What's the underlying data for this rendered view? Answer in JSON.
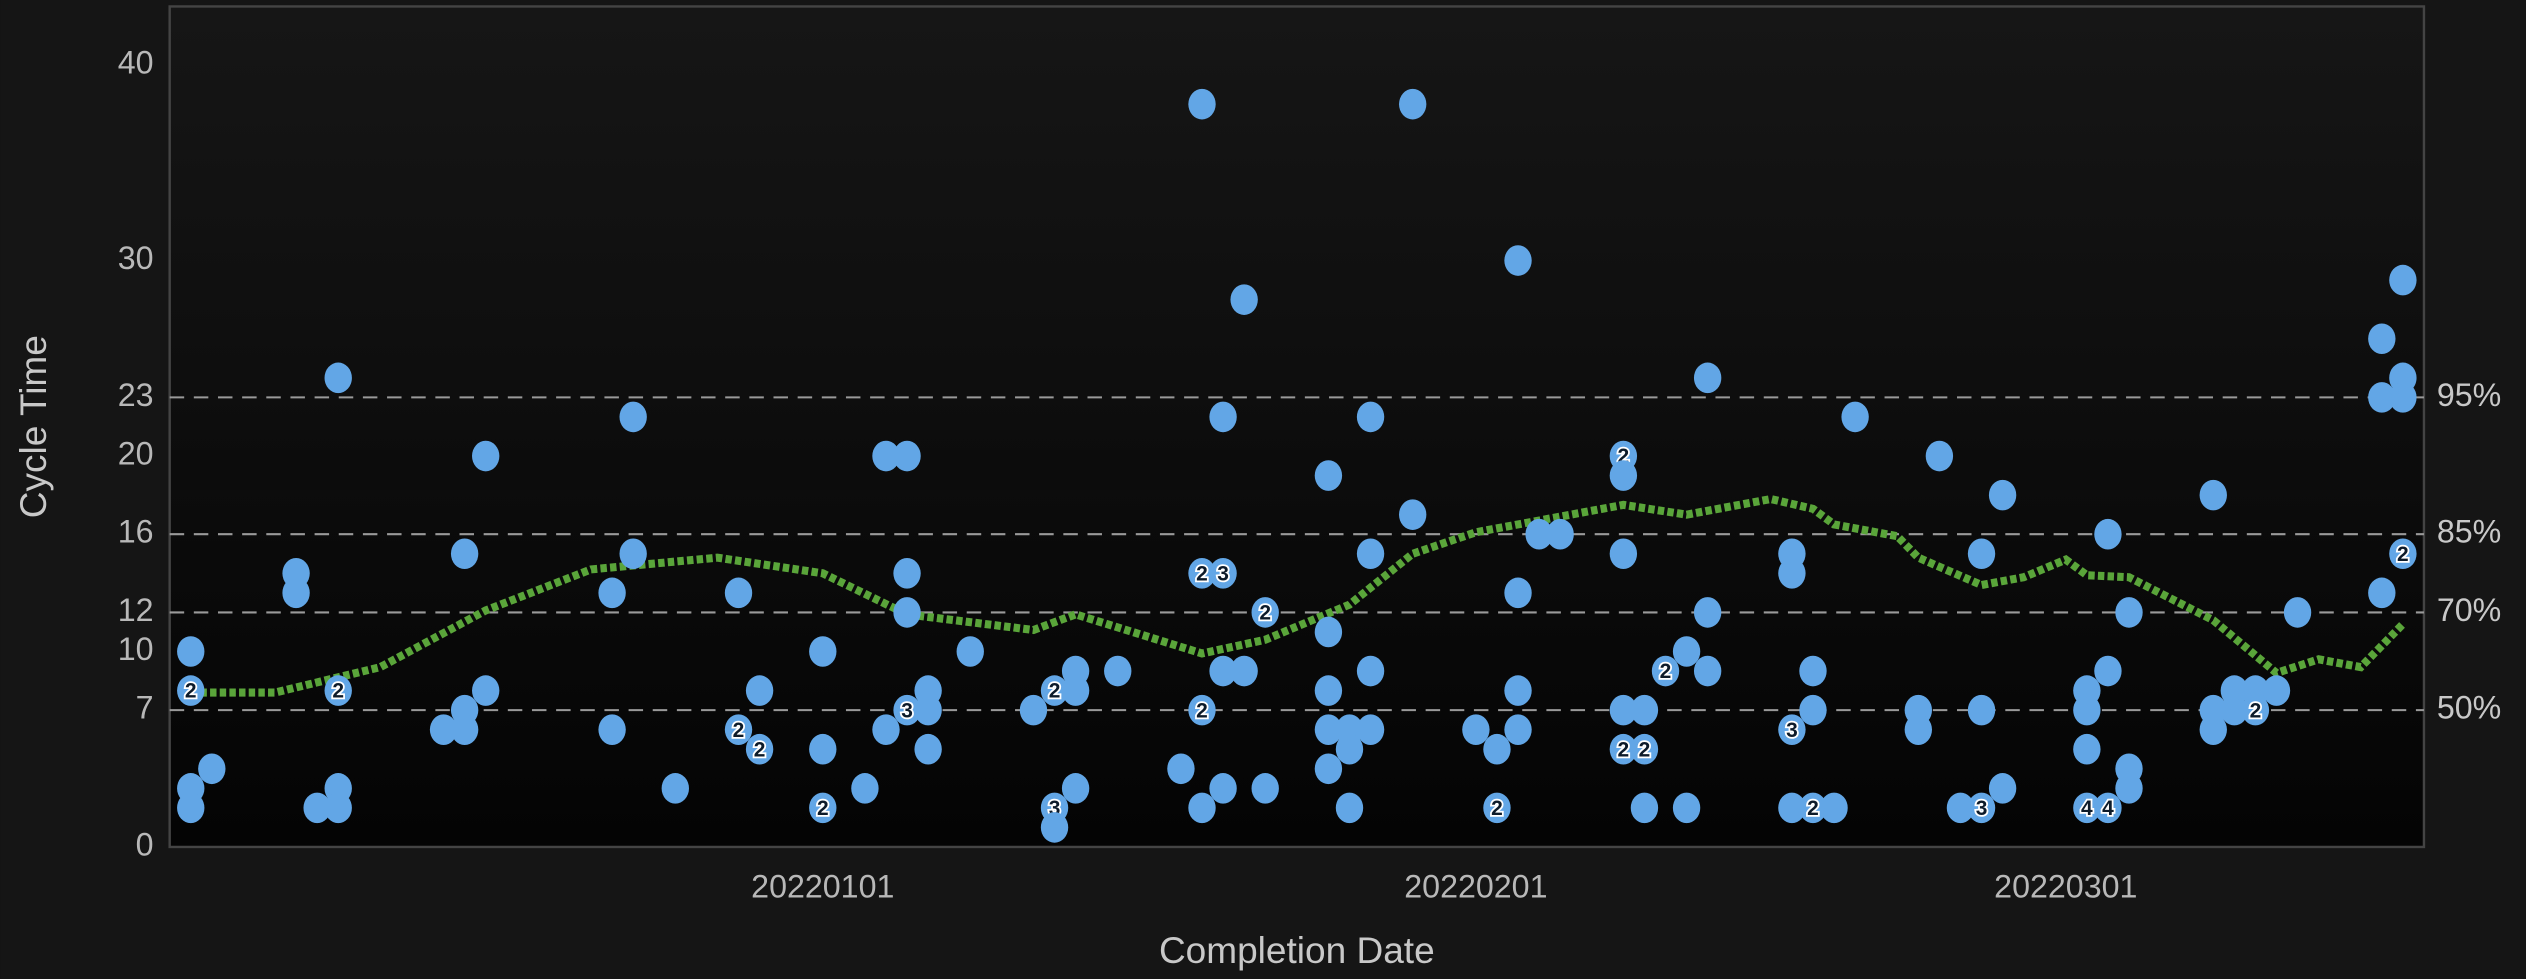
{
  "chart_data": {
    "type": "scatter",
    "ylabel": "Cycle Time",
    "xlabel": "Completion Date",
    "xlim": [
      "20211201",
      "20220318"
    ],
    "xticks": [
      "20220101",
      "20220201",
      "20220301"
    ],
    "ylim": [
      0,
      43
    ],
    "yticks": [
      0,
      7,
      10,
      12,
      16,
      20,
      23,
      30,
      40
    ],
    "grid": true,
    "color": "#62a6e6",
    "percentiles": [
      {
        "value": 23,
        "label": "95%"
      },
      {
        "value": 16,
        "label": "85%"
      },
      {
        "value": 12,
        "label": "70%"
      },
      {
        "value": 7,
        "label": "50%"
      }
    ],
    "trend": {
      "color": "#5aa53a",
      "x": [
        "20211202",
        "20211206",
        "20211211",
        "20211216",
        "20211221",
        "20211227",
        "20220101",
        "20220105",
        "20220111",
        "20220113",
        "20220119",
        "20220122",
        "20220126",
        "20220129",
        "20220201",
        "20220205",
        "20220208",
        "20220211",
        "20220215",
        "20220217",
        "20220218",
        "20220221",
        "20220222",
        "20220225",
        "20220227",
        "20220301",
        "20220302",
        "20220304",
        "20220308",
        "20220311",
        "20220313",
        "20220315",
        "20220317"
      ],
      "values": [
        7.9,
        7.9,
        9.2,
        12.1,
        14.2,
        14.8,
        14.0,
        11.9,
        11.1,
        11.9,
        9.9,
        10.6,
        12.4,
        15.0,
        16.1,
        16.9,
        17.5,
        17.0,
        17.8,
        17.3,
        16.5,
        15.9,
        14.8,
        13.4,
        13.8,
        14.7,
        13.9,
        13.8,
        11.6,
        8.9,
        9.6,
        9.2,
        11.4
      ]
    },
    "points": [
      {
        "date": "20211202",
        "value": 10
      },
      {
        "date": "20211202",
        "value": 8,
        "count": 2
      },
      {
        "date": "20211202",
        "value": 3
      },
      {
        "date": "20211202",
        "value": 2
      },
      {
        "date": "20211203",
        "value": 4
      },
      {
        "date": "20211207",
        "value": 14
      },
      {
        "date": "20211207",
        "value": 13
      },
      {
        "date": "20211208",
        "value": 2
      },
      {
        "date": "20211209",
        "value": 24
      },
      {
        "date": "20211209",
        "value": 8,
        "count": 2
      },
      {
        "date": "20211209",
        "value": 3
      },
      {
        "date": "20211209",
        "value": 2
      },
      {
        "date": "20211214",
        "value": 6
      },
      {
        "date": "20211215",
        "value": 15
      },
      {
        "date": "20211215",
        "value": 7
      },
      {
        "date": "20211215",
        "value": 6
      },
      {
        "date": "20211216",
        "value": 20
      },
      {
        "date": "20211216",
        "value": 8
      },
      {
        "date": "20211222",
        "value": 13
      },
      {
        "date": "20211222",
        "value": 6
      },
      {
        "date": "20211223",
        "value": 22
      },
      {
        "date": "20211223",
        "value": 15
      },
      {
        "date": "20211225",
        "value": 3
      },
      {
        "date": "20211228",
        "value": 13
      },
      {
        "date": "20211228",
        "value": 6,
        "count": 2
      },
      {
        "date": "20211229",
        "value": 8
      },
      {
        "date": "20211229",
        "value": 5,
        "count": 2
      },
      {
        "date": "20220101",
        "value": 10
      },
      {
        "date": "20220101",
        "value": 5
      },
      {
        "date": "20220101",
        "value": 2,
        "count": 2
      },
      {
        "date": "20220103",
        "value": 3
      },
      {
        "date": "20220104",
        "value": 6
      },
      {
        "date": "20220104",
        "value": 20
      },
      {
        "date": "20220105",
        "value": 20
      },
      {
        "date": "20220105",
        "value": 14
      },
      {
        "date": "20220105",
        "value": 12
      },
      {
        "date": "20220105",
        "value": 7,
        "count": 3
      },
      {
        "date": "20220106",
        "value": 8
      },
      {
        "date": "20220106",
        "value": 7
      },
      {
        "date": "20220106",
        "value": 5
      },
      {
        "date": "20220108",
        "value": 10
      },
      {
        "date": "20220111",
        "value": 7
      },
      {
        "date": "20220112",
        "value": 8,
        "count": 2
      },
      {
        "date": "20220112",
        "value": 2,
        "count": 3
      },
      {
        "date": "20220112",
        "value": 1
      },
      {
        "date": "20220113",
        "value": 9
      },
      {
        "date": "20220113",
        "value": 8
      },
      {
        "date": "20220113",
        "value": 3
      },
      {
        "date": "20220115",
        "value": 9
      },
      {
        "date": "20220118",
        "value": 4
      },
      {
        "date": "20220119",
        "value": 38
      },
      {
        "date": "20220119",
        "value": 14,
        "count": 2
      },
      {
        "date": "20220119",
        "value": 7,
        "count": 2
      },
      {
        "date": "20220119",
        "value": 2
      },
      {
        "date": "20220120",
        "value": 22
      },
      {
        "date": "20220120",
        "value": 14,
        "count": 3
      },
      {
        "date": "20220120",
        "value": 9
      },
      {
        "date": "20220120",
        "value": 3
      },
      {
        "date": "20220121",
        "value": 28
      },
      {
        "date": "20220121",
        "value": 9
      },
      {
        "date": "20220122",
        "value": 12,
        "count": 2
      },
      {
        "date": "20220122",
        "value": 3
      },
      {
        "date": "20220125",
        "value": 19
      },
      {
        "date": "20220125",
        "value": 11
      },
      {
        "date": "20220125",
        "value": 8
      },
      {
        "date": "20220125",
        "value": 6
      },
      {
        "date": "20220125",
        "value": 4
      },
      {
        "date": "20220126",
        "value": 6
      },
      {
        "date": "20220126",
        "value": 5
      },
      {
        "date": "20220126",
        "value": 2
      },
      {
        "date": "20220127",
        "value": 22
      },
      {
        "date": "20220127",
        "value": 15
      },
      {
        "date": "20220127",
        "value": 9
      },
      {
        "date": "20220127",
        "value": 6
      },
      {
        "date": "20220129",
        "value": 38
      },
      {
        "date": "20220129",
        "value": 17
      },
      {
        "date": "20220201",
        "value": 6
      },
      {
        "date": "20220202",
        "value": 5
      },
      {
        "date": "20220202",
        "value": 2,
        "count": 2
      },
      {
        "date": "20220203",
        "value": 30
      },
      {
        "date": "20220203",
        "value": 13
      },
      {
        "date": "20220203",
        "value": 8
      },
      {
        "date": "20220203",
        "value": 6
      },
      {
        "date": "20220204",
        "value": 16
      },
      {
        "date": "20220205",
        "value": 16
      },
      {
        "date": "20220208",
        "value": 20,
        "count": 2
      },
      {
        "date": "20220208",
        "value": 19
      },
      {
        "date": "20220208",
        "value": 15
      },
      {
        "date": "20220208",
        "value": 7
      },
      {
        "date": "20220208",
        "value": 5,
        "count": 2
      },
      {
        "date": "20220209",
        "value": 7
      },
      {
        "date": "20220209",
        "value": 5,
        "count": 2
      },
      {
        "date": "20220209",
        "value": 2
      },
      {
        "date": "20220210",
        "value": 9,
        "count": 2
      },
      {
        "date": "20220211",
        "value": 10
      },
      {
        "date": "20220211",
        "value": 2
      },
      {
        "date": "20220212",
        "value": 24
      },
      {
        "date": "20220212",
        "value": 12
      },
      {
        "date": "20220212",
        "value": 9
      },
      {
        "date": "20220216",
        "value": 15
      },
      {
        "date": "20220216",
        "value": 14
      },
      {
        "date": "20220216",
        "value": 6,
        "count": 3
      },
      {
        "date": "20220216",
        "value": 2
      },
      {
        "date": "20220217",
        "value": 9
      },
      {
        "date": "20220217",
        "value": 7
      },
      {
        "date": "20220217",
        "value": 2,
        "count": 2
      },
      {
        "date": "20220218",
        "value": 2
      },
      {
        "date": "20220219",
        "value": 22
      },
      {
        "date": "20220222",
        "value": 7
      },
      {
        "date": "20220222",
        "value": 6
      },
      {
        "date": "20220223",
        "value": 20
      },
      {
        "date": "20220224",
        "value": 2
      },
      {
        "date": "20220225",
        "value": 15
      },
      {
        "date": "20220225",
        "value": 7
      },
      {
        "date": "20220225",
        "value": 2,
        "count": 3
      },
      {
        "date": "20220226",
        "value": 18
      },
      {
        "date": "20220226",
        "value": 3
      },
      {
        "date": "20220302",
        "value": 8
      },
      {
        "date": "20220302",
        "value": 7
      },
      {
        "date": "20220302",
        "value": 5
      },
      {
        "date": "20220302",
        "value": 2,
        "count": 4
      },
      {
        "date": "20220303",
        "value": 16
      },
      {
        "date": "20220303",
        "value": 9
      },
      {
        "date": "20220303",
        "value": 2,
        "count": 4
      },
      {
        "date": "20220304",
        "value": 12
      },
      {
        "date": "20220304",
        "value": 4
      },
      {
        "date": "20220304",
        "value": 3
      },
      {
        "date": "20220308",
        "value": 18
      },
      {
        "date": "20220308",
        "value": 7
      },
      {
        "date": "20220308",
        "value": 6
      },
      {
        "date": "20220309",
        "value": 7
      },
      {
        "date": "20220309",
        "value": 8
      },
      {
        "date": "20220310",
        "value": 8
      },
      {
        "date": "20220310",
        "value": 7,
        "count": 2
      },
      {
        "date": "20220311",
        "value": 8
      },
      {
        "date": "20220312",
        "value": 12
      },
      {
        "date": "20220316",
        "value": 26
      },
      {
        "date": "20220316",
        "value": 23
      },
      {
        "date": "20220316",
        "value": 13
      },
      {
        "date": "20220317",
        "value": 29
      },
      {
        "date": "20220317",
        "value": 24
      },
      {
        "date": "20220317",
        "value": 23
      },
      {
        "date": "20220317",
        "value": 15,
        "count": 2
      }
    ]
  }
}
